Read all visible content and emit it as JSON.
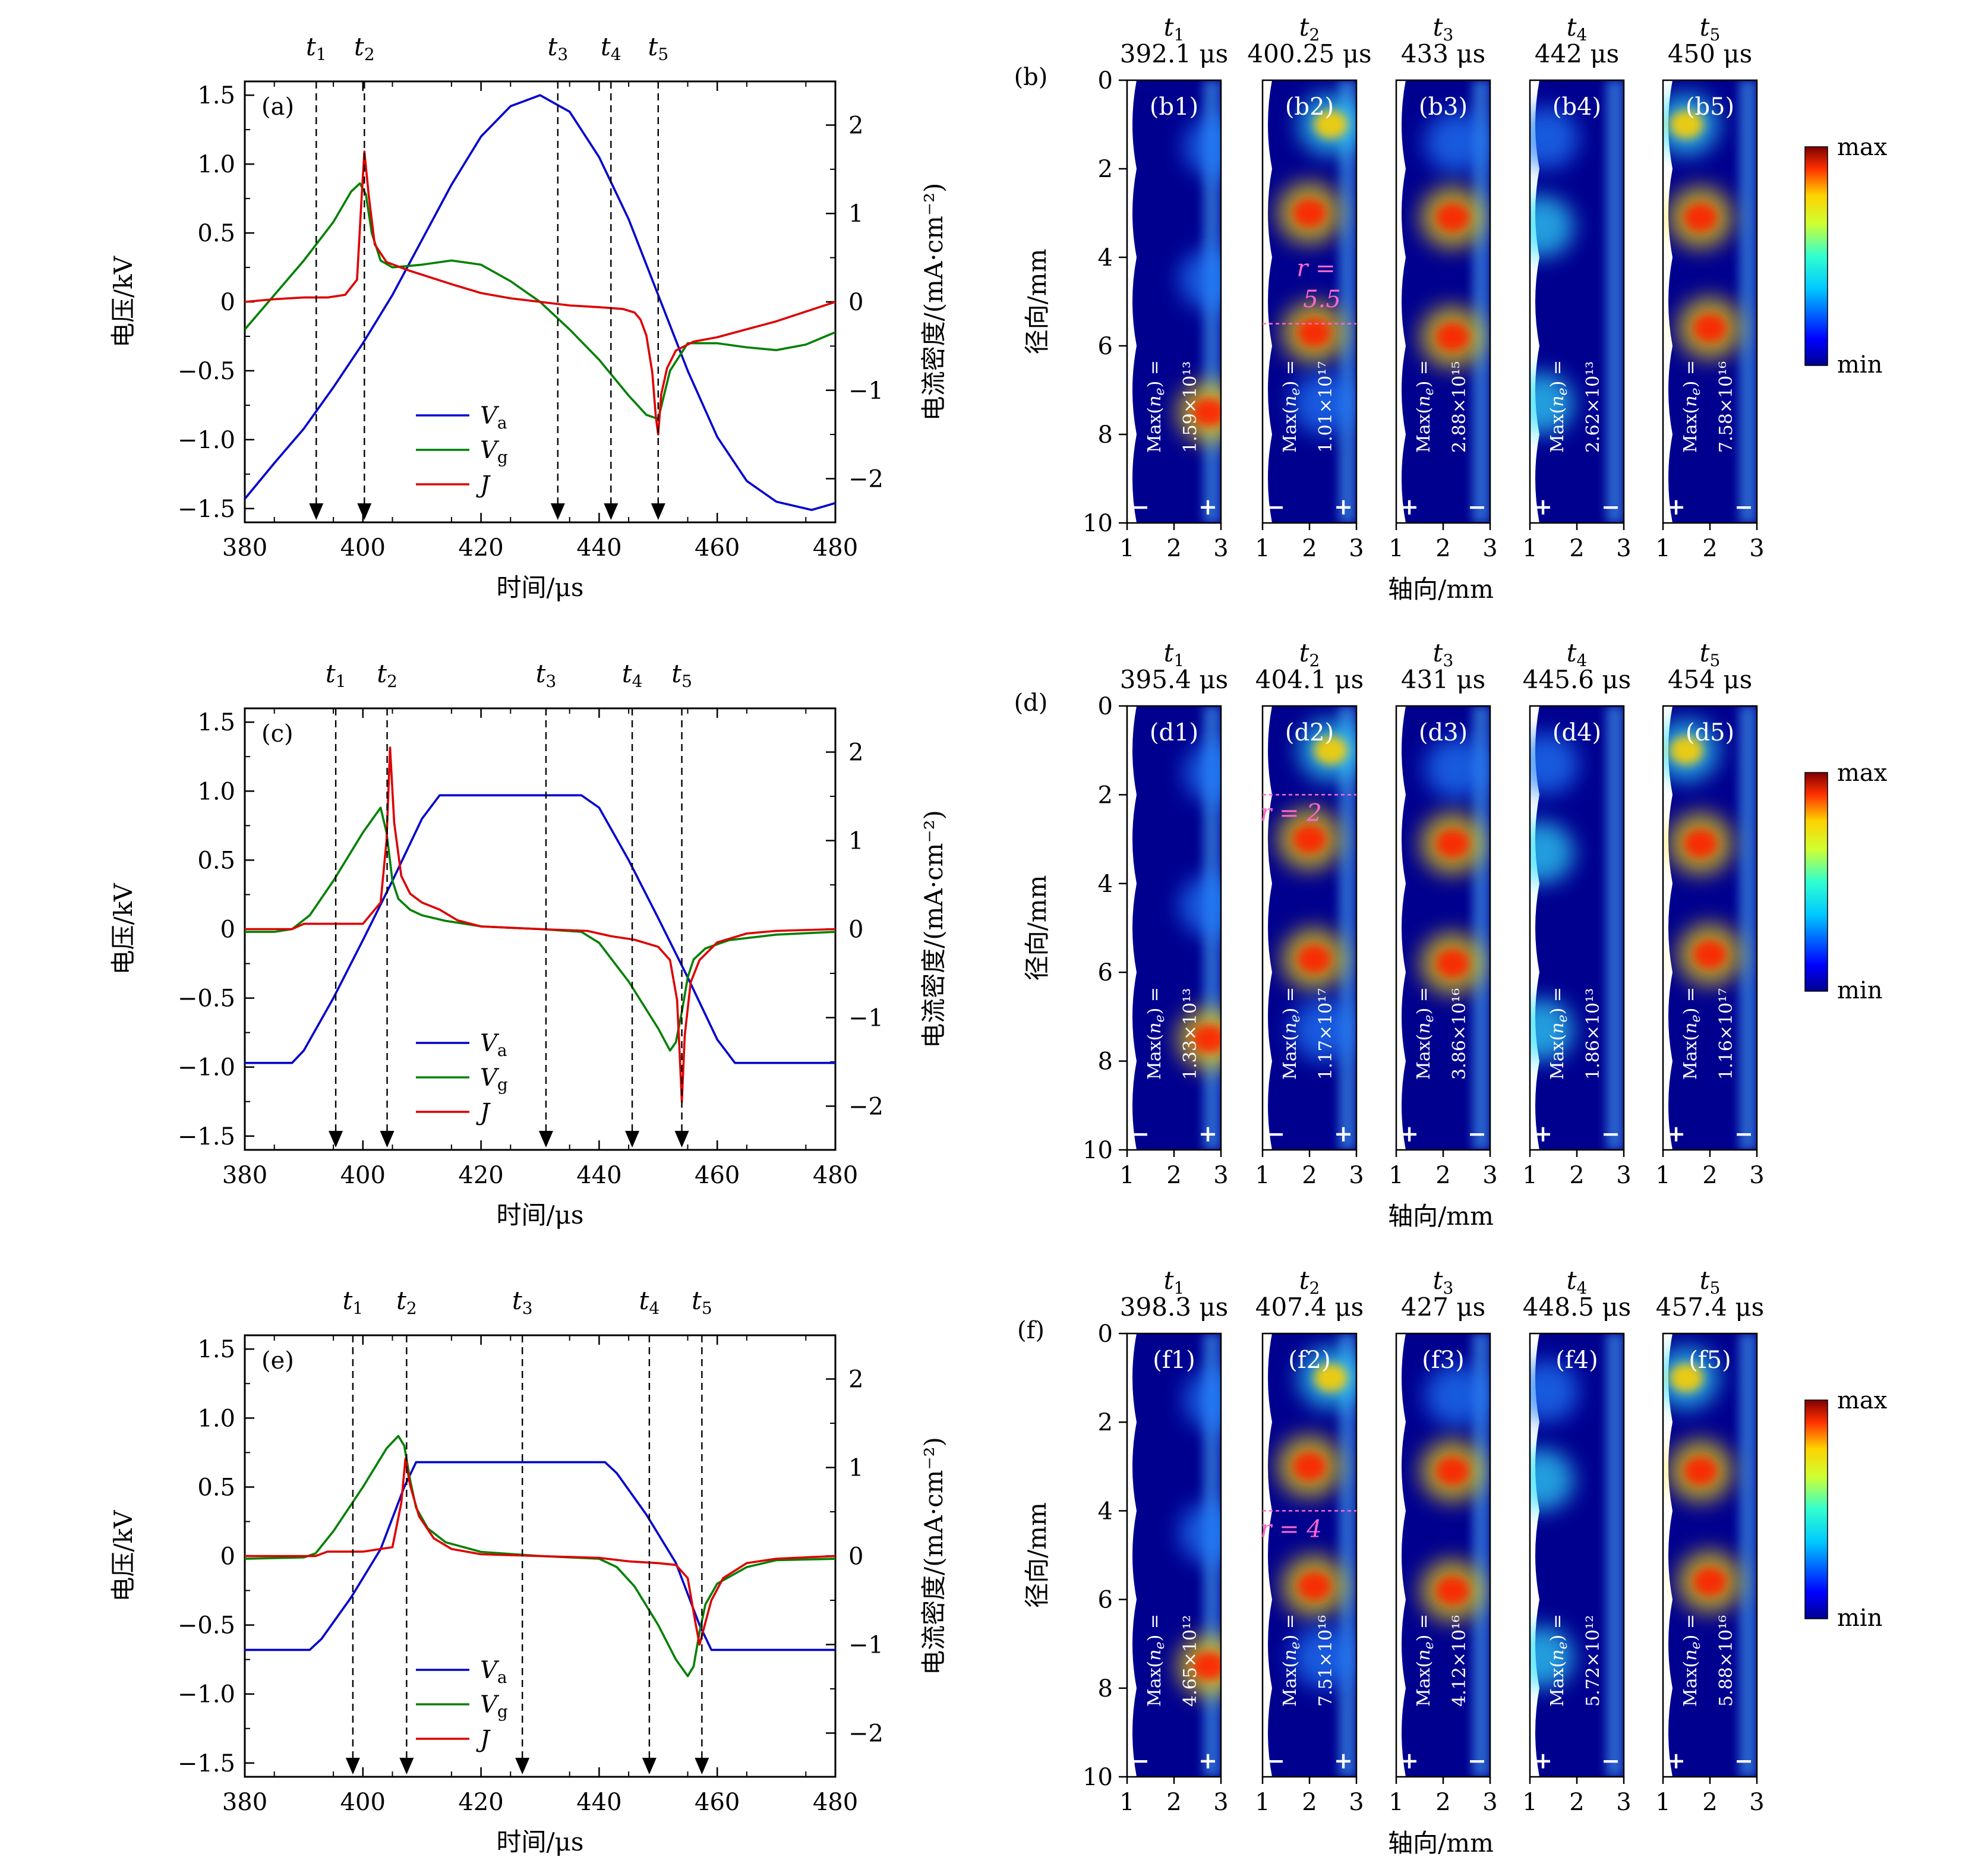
{
  "chart_data": [
    {
      "type": "line",
      "panel": "(a)",
      "xlabel": "时间/μs",
      "ylabel": "电压/kV",
      "y2label": "电流密度/(mA·cm⁻²)",
      "xlim": [
        380,
        480
      ],
      "ylim": [
        -1.6,
        1.6
      ],
      "y2lim": [
        -2.494,
        2.494
      ],
      "xticks": [
        "380",
        "400",
        "420",
        "440",
        "460",
        "480"
      ],
      "yticks": [
        "-1.5",
        "-1.0",
        "-0.5",
        "0",
        "0.5",
        "1.0",
        "1.5"
      ],
      "y2ticks": [
        "-2",
        "-1",
        "0",
        "1",
        "2"
      ],
      "markers": [
        {
          "label": "t1",
          "x": 392.1
        },
        {
          "label": "t2",
          "x": 400.25
        },
        {
          "label": "t3",
          "x": 433
        },
        {
          "label": "t4",
          "x": 442
        },
        {
          "label": "t5",
          "x": 450
        }
      ],
      "legend": [
        "Va",
        "Vg",
        "J"
      ],
      "series": [
        {
          "name": "Va",
          "axis": "left",
          "x": [
            380,
            385,
            390,
            395,
            400,
            405,
            410,
            415,
            420,
            425,
            430,
            435,
            440,
            445,
            450,
            455,
            460,
            465,
            470,
            476,
            480
          ],
          "values": [
            -1.43,
            -1.17,
            -0.92,
            -0.62,
            -0.3,
            0.05,
            0.45,
            0.85,
            1.2,
            1.42,
            1.5,
            1.38,
            1.05,
            0.6,
            0.05,
            -0.5,
            -0.98,
            -1.3,
            -1.45,
            -1.51,
            -1.46
          ]
        },
        {
          "name": "Vg",
          "axis": "left",
          "x": [
            380,
            385,
            390,
            395,
            398,
            399.5,
            400.5,
            401.5,
            403,
            405,
            410,
            415,
            420,
            425,
            430,
            435,
            440,
            445,
            448,
            450,
            452,
            455,
            460,
            465,
            470,
            475,
            480
          ],
          "values": [
            -0.2,
            0.05,
            0.3,
            0.58,
            0.8,
            0.86,
            0.78,
            0.5,
            0.3,
            0.25,
            0.27,
            0.3,
            0.27,
            0.15,
            0.0,
            -0.2,
            -0.42,
            -0.68,
            -0.82,
            -0.85,
            -0.5,
            -0.3,
            -0.3,
            -0.33,
            -0.35,
            -0.31,
            -0.22
          ]
        },
        {
          "name": "J",
          "axis": "right",
          "x": [
            380,
            385,
            390,
            394,
            397,
            399,
            399.8,
            400.25,
            401,
            402,
            404,
            408,
            415,
            420,
            425,
            430,
            435,
            440,
            444,
            446,
            447,
            448,
            449,
            449.6,
            450,
            450.5,
            451.5,
            453,
            456,
            460,
            470,
            480
          ],
          "values": [
            0.0,
            0.03,
            0.05,
            0.05,
            0.08,
            0.25,
            1.2,
            1.7,
            1.2,
            0.65,
            0.45,
            0.35,
            0.2,
            0.1,
            0.04,
            0.0,
            -0.04,
            -0.06,
            -0.08,
            -0.12,
            -0.2,
            -0.38,
            -0.8,
            -1.3,
            -1.5,
            -1.05,
            -0.75,
            -0.55,
            -0.45,
            -0.4,
            -0.22,
            0.0
          ]
        }
      ]
    },
    {
      "type": "line",
      "panel": "(c)",
      "xlabel": "时间/μs",
      "ylabel": "电压/kV",
      "y2label": "电流密度/(mA·cm⁻²)",
      "xlim": [
        380,
        480
      ],
      "ylim": [
        -1.6,
        1.6
      ],
      "y2lim": [
        -2.494,
        2.494
      ],
      "xticks": [
        "380",
        "400",
        "420",
        "440",
        "460",
        "480"
      ],
      "yticks": [
        "-1.5",
        "-1.0",
        "-0.5",
        "0",
        "0.5",
        "1.0",
        "1.5"
      ],
      "y2ticks": [
        "-2",
        "-1",
        "0",
        "1",
        "2"
      ],
      "markers": [
        {
          "label": "t1",
          "x": 395.4
        },
        {
          "label": "t2",
          "x": 404.1
        },
        {
          "label": "t3",
          "x": 431
        },
        {
          "label": "t4",
          "x": 445.6
        },
        {
          "label": "t5",
          "x": 454
        }
      ],
      "legend": [
        "Va",
        "Vg",
        "J"
      ],
      "series": [
        {
          "name": "Va",
          "axis": "left",
          "x": [
            380,
            388,
            390,
            395,
            400,
            405,
            410,
            413,
            437,
            440,
            445,
            450,
            455,
            460,
            463,
            480
          ],
          "values": [
            -0.97,
            -0.97,
            -0.88,
            -0.5,
            -0.08,
            0.35,
            0.8,
            0.97,
            0.97,
            0.88,
            0.5,
            0.08,
            -0.35,
            -0.8,
            -0.97,
            -0.97
          ]
        },
        {
          "name": "Vg",
          "axis": "left",
          "x": [
            380,
            385,
            388,
            391,
            395,
            400,
            403,
            404,
            405,
            406,
            408,
            410,
            414,
            420,
            430,
            437,
            440,
            445,
            450,
            452,
            453,
            454,
            455,
            456,
            458,
            462,
            470,
            480
          ],
          "values": [
            -0.02,
            -0.02,
            0.0,
            0.1,
            0.35,
            0.7,
            0.88,
            0.7,
            0.35,
            0.22,
            0.14,
            0.1,
            0.06,
            0.02,
            0.0,
            -0.02,
            -0.1,
            -0.38,
            -0.72,
            -0.88,
            -0.82,
            -0.6,
            -0.35,
            -0.22,
            -0.14,
            -0.08,
            -0.04,
            -0.02
          ]
        },
        {
          "name": "J",
          "axis": "right",
          "x": [
            380,
            388,
            390,
            395,
            400,
            403,
            404,
            404.6,
            405.3,
            406.5,
            408,
            410,
            413,
            416,
            420,
            430,
            438,
            442,
            446,
            450,
            452,
            453.2,
            453.7,
            454,
            454.5,
            455.5,
            457,
            460,
            465,
            470,
            480
          ],
          "values": [
            0.0,
            0.0,
            0.06,
            0.06,
            0.06,
            0.3,
            1.0,
            2.05,
            1.2,
            0.6,
            0.4,
            0.3,
            0.22,
            0.1,
            0.03,
            0.0,
            -0.02,
            -0.08,
            -0.12,
            -0.2,
            -0.35,
            -0.8,
            -1.5,
            -1.95,
            -1.2,
            -0.6,
            -0.35,
            -0.15,
            -0.05,
            -0.02,
            0.0
          ]
        }
      ]
    },
    {
      "type": "line",
      "panel": "(e)",
      "xlabel": "时间/μs",
      "ylabel": "电压/kV",
      "y2label": "电流密度/(mA·cm⁻²)",
      "xlim": [
        380,
        480
      ],
      "ylim": [
        -1.6,
        1.6
      ],
      "y2lim": [
        -2.494,
        2.494
      ],
      "xticks": [
        "380",
        "400",
        "420",
        "440",
        "460",
        "480"
      ],
      "yticks": [
        "-1.5",
        "-1.0",
        "-0.5",
        "0",
        "0.5",
        "1.0",
        "1.5"
      ],
      "y2ticks": [
        "-2",
        "-1",
        "0",
        "1",
        "2"
      ],
      "markers": [
        {
          "label": "t1",
          "x": 398.3
        },
        {
          "label": "t2",
          "x": 407.4
        },
        {
          "label": "t3",
          "x": 427
        },
        {
          "label": "t4",
          "x": 448.5
        },
        {
          "label": "t5",
          "x": 457.4
        }
      ],
      "legend": [
        "Va",
        "Vg",
        "J"
      ],
      "series": [
        {
          "name": "Va",
          "axis": "left",
          "x": [
            380,
            391,
            393,
            398,
            403,
            407,
            409,
            441,
            443,
            448,
            453,
            457,
            459,
            480
          ],
          "values": [
            -0.68,
            -0.68,
            -0.6,
            -0.3,
            0.05,
            0.5,
            0.68,
            0.68,
            0.6,
            0.3,
            -0.05,
            -0.5,
            -0.68,
            -0.68
          ]
        },
        {
          "name": "Vg",
          "axis": "left",
          "x": [
            380,
            390,
            392,
            395,
            400,
            404,
            406,
            407,
            408,
            409,
            411,
            414,
            420,
            430,
            440,
            443,
            446,
            450,
            453,
            455,
            456,
            457,
            458,
            460,
            465,
            470,
            480
          ],
          "values": [
            -0.02,
            -0.01,
            0.02,
            0.18,
            0.5,
            0.78,
            0.87,
            0.8,
            0.55,
            0.35,
            0.2,
            0.1,
            0.03,
            0.0,
            -0.02,
            -0.08,
            -0.22,
            -0.5,
            -0.75,
            -0.87,
            -0.8,
            -0.55,
            -0.35,
            -0.2,
            -0.08,
            -0.03,
            -0.02
          ]
        },
        {
          "name": "J",
          "axis": "right",
          "x": [
            380,
            392,
            394,
            400,
            405,
            406.5,
            407.2,
            408,
            409.5,
            412,
            415,
            420,
            430,
            440,
            445,
            450,
            453,
            455,
            456.3,
            457,
            458,
            459,
            461,
            465,
            470,
            480
          ],
          "values": [
            0.0,
            0.0,
            0.05,
            0.05,
            0.1,
            0.6,
            1.1,
            0.8,
            0.45,
            0.2,
            0.08,
            0.02,
            0.0,
            -0.02,
            -0.06,
            -0.08,
            -0.1,
            -0.25,
            -0.75,
            -1.0,
            -0.75,
            -0.5,
            -0.25,
            -0.08,
            -0.03,
            0.0
          ]
        }
      ]
    },
    {
      "type": "heatmap",
      "panel": "(b)",
      "quantity": "ne",
      "xlabel": "轴向/mm",
      "ylabel": "径向/mm",
      "xlim": [
        1,
        3
      ],
      "ylim": [
        0,
        10
      ],
      "xticks": [
        "1",
        "2",
        "3"
      ],
      "yticks": [
        "0",
        "2",
        "4",
        "6",
        "8",
        "10"
      ],
      "colorbar": {
        "max": "max",
        "min": "min"
      },
      "subplots": [
        {
          "tag": "(b1)",
          "t": "t1",
          "time": "392.1 μs",
          "max": "1.59×10¹³",
          "signs": [
            "−",
            "+"
          ]
        },
        {
          "tag": "(b2)",
          "t": "t2",
          "time": "400.25 μs",
          "max": "1.01×10¹⁷",
          "signs": [
            "−",
            "+"
          ],
          "note": "r =",
          "note2": "5.5"
        },
        {
          "tag": "(b3)",
          "t": "t3",
          "time": "433 μs",
          "max": "2.88×10¹⁵",
          "signs": [
            "+",
            "−"
          ]
        },
        {
          "tag": "(b4)",
          "t": "t4",
          "time": "442 μs",
          "max": "2.62×10¹³",
          "signs": [
            "+",
            "−"
          ]
        },
        {
          "tag": "(b5)",
          "t": "t5",
          "time": "450 μs",
          "max": "7.58×10¹⁶",
          "signs": [
            "+",
            "−"
          ]
        }
      ]
    },
    {
      "type": "heatmap",
      "panel": "(d)",
      "quantity": "ne",
      "xlabel": "轴向/mm",
      "ylabel": "径向/mm",
      "xlim": [
        1,
        3
      ],
      "ylim": [
        0,
        10
      ],
      "xticks": [
        "1",
        "2",
        "3"
      ],
      "yticks": [
        "0",
        "2",
        "4",
        "6",
        "8",
        "10"
      ],
      "colorbar": {
        "max": "max",
        "min": "min"
      },
      "subplots": [
        {
          "tag": "(d1)",
          "t": "t1",
          "time": "395.4 μs",
          "max": "1.33×10¹³",
          "signs": [
            "−",
            "+"
          ]
        },
        {
          "tag": "(d2)",
          "t": "t2",
          "time": "404.1 μs",
          "max": "1.17×10¹⁷",
          "signs": [
            "−",
            "+"
          ],
          "note": "r = 2"
        },
        {
          "tag": "(d3)",
          "t": "t3",
          "time": "431 μs",
          "max": "3.86×10¹⁶",
          "signs": [
            "+",
            "−"
          ]
        },
        {
          "tag": "(d4)",
          "t": "t4",
          "time": "445.6 μs",
          "max": "1.86×10¹³",
          "signs": [
            "+",
            "−"
          ]
        },
        {
          "tag": "(d5)",
          "t": "t5",
          "time": "454 μs",
          "max": "1.16×10¹⁷",
          "signs": [
            "+",
            "−"
          ]
        }
      ]
    },
    {
      "type": "heatmap",
      "panel": "(f)",
      "quantity": "ne",
      "xlabel": "轴向/mm",
      "ylabel": "径向/mm",
      "xlim": [
        1,
        3
      ],
      "ylim": [
        0,
        10
      ],
      "xticks": [
        "1",
        "2",
        "3"
      ],
      "yticks": [
        "0",
        "2",
        "4",
        "6",
        "8",
        "10"
      ],
      "colorbar": {
        "max": "max",
        "min": "min"
      },
      "subplots": [
        {
          "tag": "(f1)",
          "t": "t1",
          "time": "398.3 μs",
          "max": "4.65×10¹²",
          "signs": [
            "−",
            "+"
          ]
        },
        {
          "tag": "(f2)",
          "t": "t2",
          "time": "407.4 μs",
          "max": "7.51×10¹⁶",
          "signs": [
            "−",
            "+"
          ],
          "note": "r = 4"
        },
        {
          "tag": "(f3)",
          "t": "t3",
          "time": "427 μs",
          "max": "4.12×10¹⁶",
          "signs": [
            "+",
            "−"
          ]
        },
        {
          "tag": "(f4)",
          "t": "t4",
          "time": "448.5 μs",
          "max": "5.72×10¹²",
          "signs": [
            "+",
            "−"
          ]
        },
        {
          "tag": "(f5)",
          "t": "t5",
          "time": "457.4 μs",
          "max": "5.88×10¹⁶",
          "signs": [
            "+",
            "−"
          ]
        }
      ]
    }
  ],
  "colors": {
    "Va": "#0000cc",
    "Vg": "#008000",
    "J": "#dd0000",
    "note": "#ff66cc",
    "bg": "#00008f"
  },
  "blobs": [
    [
      {
        "x": 2.75,
        "y": 7.5,
        "s": 1.0
      },
      {
        "x": 2.9,
        "y": 1.5,
        "s": 0.15
      },
      {
        "x": 2.8,
        "y": 4.5,
        "s": 0.12
      }
    ],
    [
      {
        "x": 2.45,
        "y": 1.0,
        "s": 0.55
      },
      {
        "x": 2.0,
        "y": 3.0,
        "s": 1.0
      },
      {
        "x": 2.1,
        "y": 5.7,
        "s": 0.9
      },
      {
        "x": 2.3,
        "y": 7.3,
        "s": 0.35
      }
    ],
    [
      {
        "x": 2.3,
        "y": 1.4,
        "s": 0.35
      },
      {
        "x": 2.2,
        "y": 3.1,
        "s": 1.0
      },
      {
        "x": 2.2,
        "y": 5.8,
        "s": 0.95
      }
    ],
    [
      {
        "x": 1.25,
        "y": 3.3,
        "s": 0.45
      },
      {
        "x": 1.25,
        "y": 7.3,
        "s": 0.5
      },
      {
        "x": 1.35,
        "y": 1.3,
        "s": 0.25
      }
    ],
    [
      {
        "x": 1.5,
        "y": 1.0,
        "s": 0.6
      },
      {
        "x": 1.8,
        "y": 3.1,
        "s": 1.0
      },
      {
        "x": 2.0,
        "y": 5.6,
        "s": 1.0
      }
    ]
  ]
}
